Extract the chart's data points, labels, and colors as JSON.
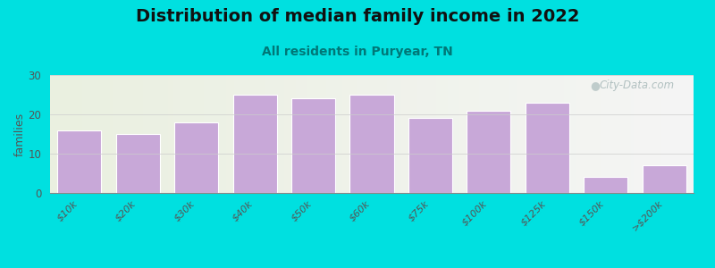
{
  "title": "Distribution of median family income in 2022",
  "subtitle": "All residents in Puryear, TN",
  "categories": [
    "$10k",
    "$20k",
    "$30k",
    "$40k",
    "$50k",
    "$60k",
    "$75k",
    "$100k",
    "$125k",
    "$150k",
    ">$200k"
  ],
  "values": [
    16,
    15,
    18,
    25,
    24,
    25,
    19,
    21,
    23,
    4,
    7
  ],
  "bar_color": "#c8a8d8",
  "bar_edge_color": "#ffffff",
  "ylabel": "families",
  "ylim": [
    0,
    30
  ],
  "yticks": [
    0,
    10,
    20,
    30
  ],
  "background_color": "#00e0e0",
  "plot_bg_left": "#eaf0e0",
  "plot_bg_right": "#f5f5f5",
  "title_fontsize": 14,
  "subtitle_fontsize": 10,
  "subtitle_color": "#007777",
  "watermark_text": "City-Data.com",
  "watermark_color": "#aabbbb",
  "tick_label_color": "#555555"
}
